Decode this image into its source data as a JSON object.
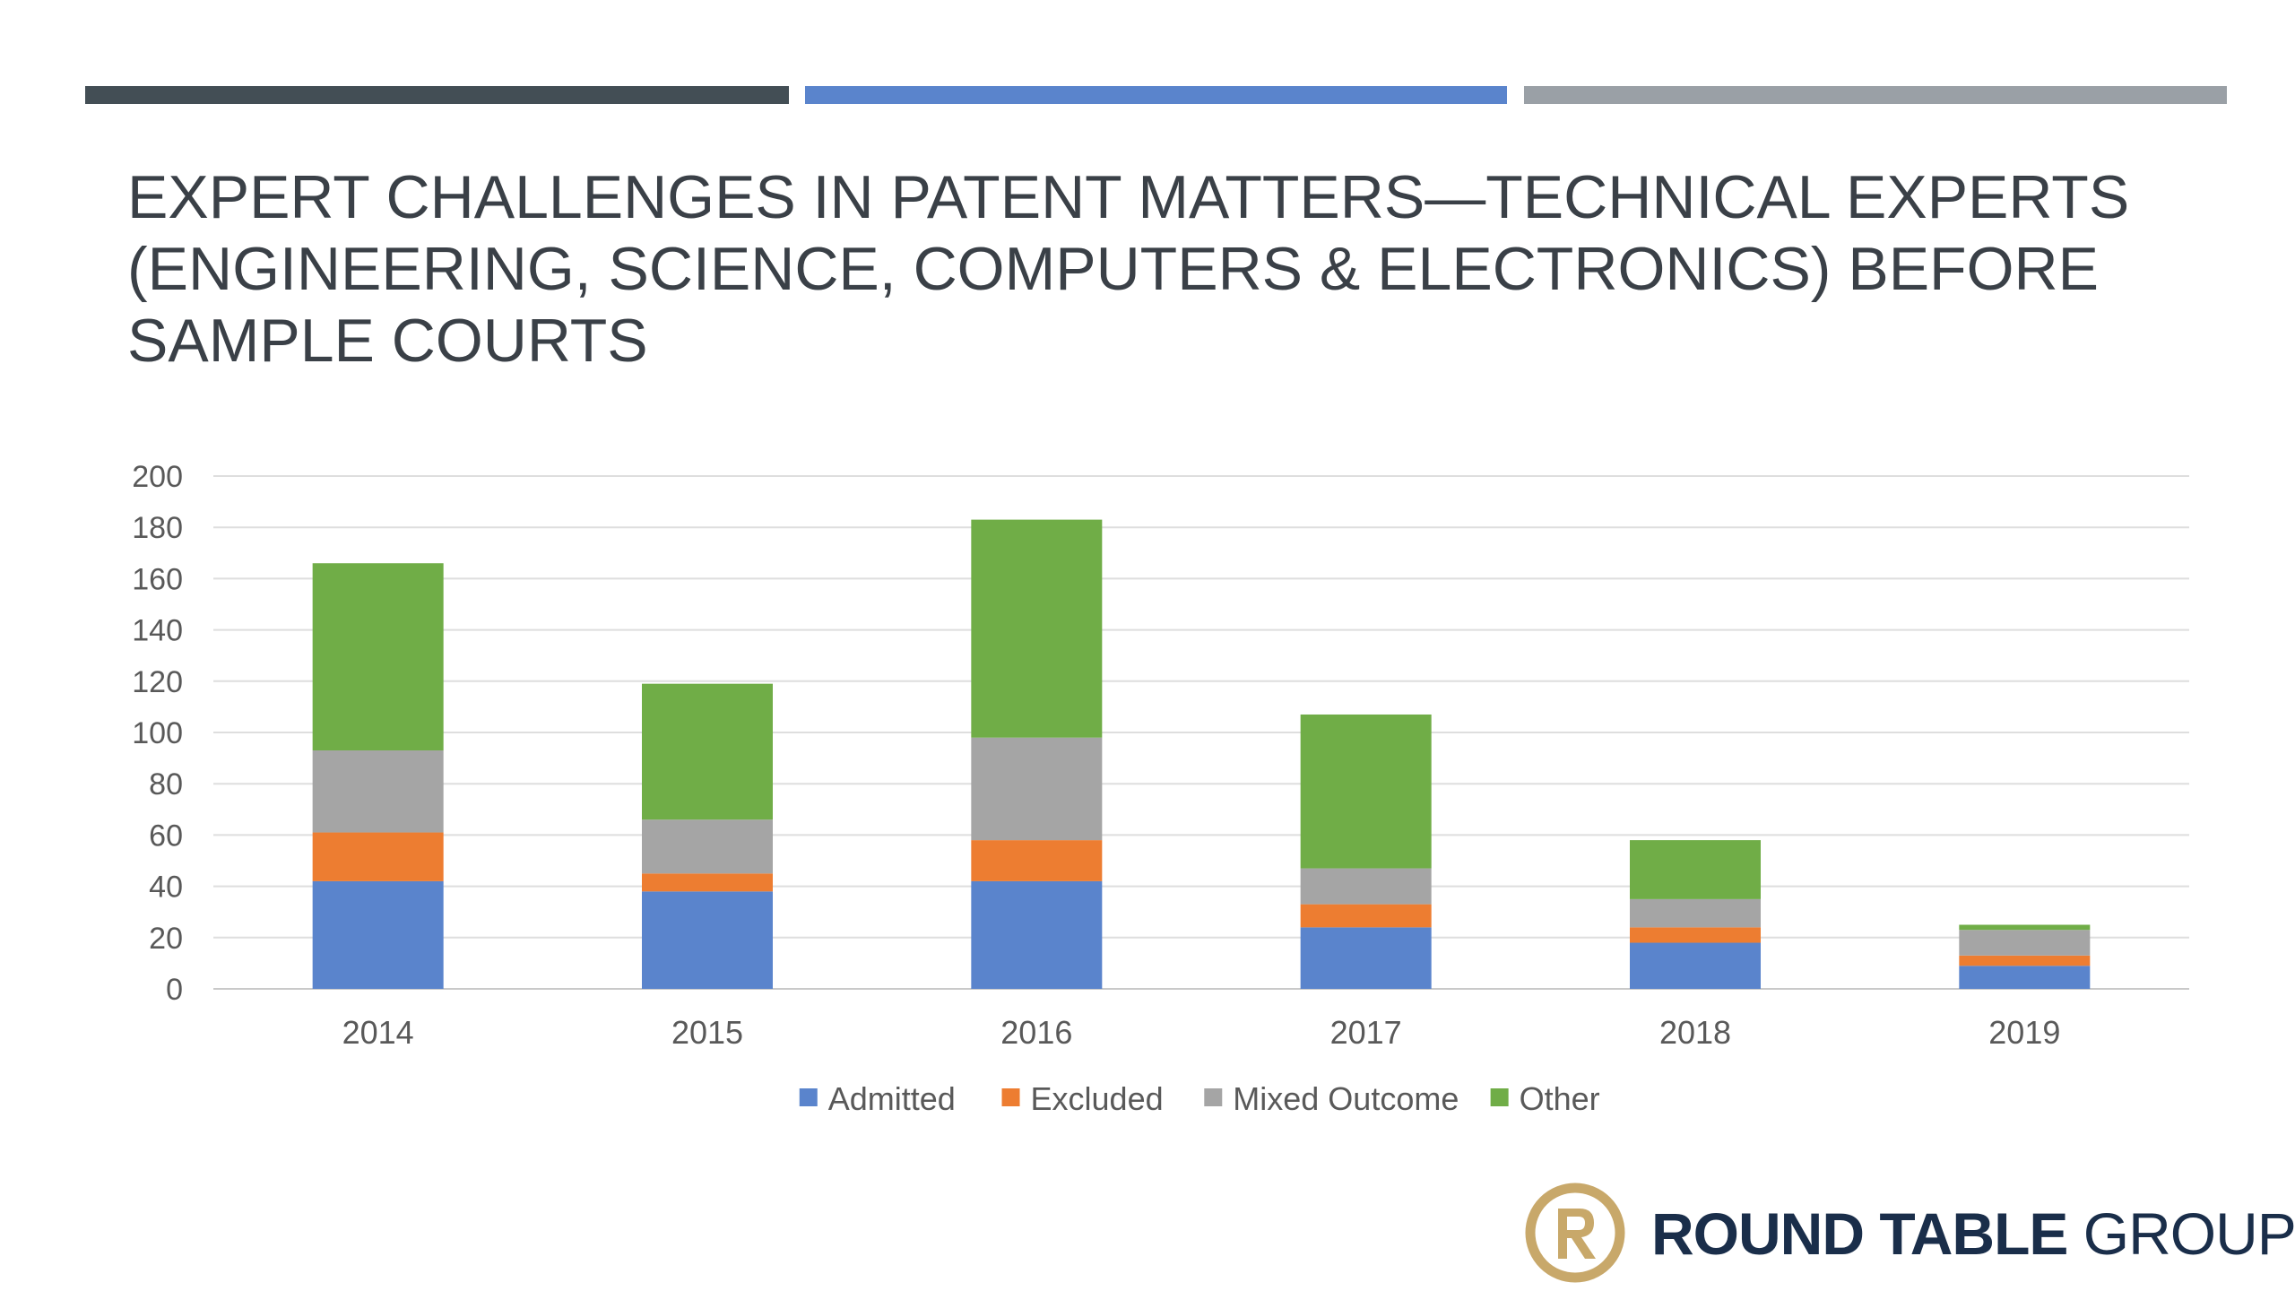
{
  "colors": {
    "bar_dark": "#434e55",
    "bar_blue": "#5a84cc",
    "bar_gray": "#9aa0a6",
    "admitted": "#5a84cc",
    "excluded": "#ed7d31",
    "mixed": "#a5a5a5",
    "other": "#70ad47",
    "logo_gold": "#c8a86a",
    "logo_navy": "#1a2e4a"
  },
  "slide": {
    "title": "EXPERT CHALLENGES IN PATENT MATTERS—TECHNICAL EXPERTS (ENGINEERING, SCIENCE, COMPUTERS & ELECTRONICS) BEFORE SAMPLE COURTS"
  },
  "logo": {
    "icon": "round-table-r-icon",
    "text_bold": "ROUND TABLE",
    "text_light": "GROUP"
  },
  "chart_data": {
    "type": "bar",
    "stacked": true,
    "title": "",
    "xlabel": "",
    "ylabel": "",
    "categories": [
      "2014",
      "2015",
      "2016",
      "2017",
      "2018",
      "2019"
    ],
    "ylim": [
      0,
      200
    ],
    "yticks": [
      0,
      20,
      40,
      60,
      80,
      100,
      120,
      140,
      160,
      180,
      200
    ],
    "grid": true,
    "legend": "bottom",
    "series": [
      {
        "name": "Admitted",
        "color": "#5a84cc",
        "values": [
          42,
          38,
          42,
          24,
          18,
          9
        ]
      },
      {
        "name": "Excluded",
        "color": "#ed7d31",
        "values": [
          19,
          7,
          16,
          9,
          6,
          4
        ]
      },
      {
        "name": "Mixed Outcome",
        "color": "#a5a5a5",
        "values": [
          32,
          21,
          40,
          14,
          11,
          10
        ]
      },
      {
        "name": "Other",
        "color": "#70ad47",
        "values": [
          73,
          53,
          85,
          60,
          23,
          2
        ]
      }
    ]
  }
}
